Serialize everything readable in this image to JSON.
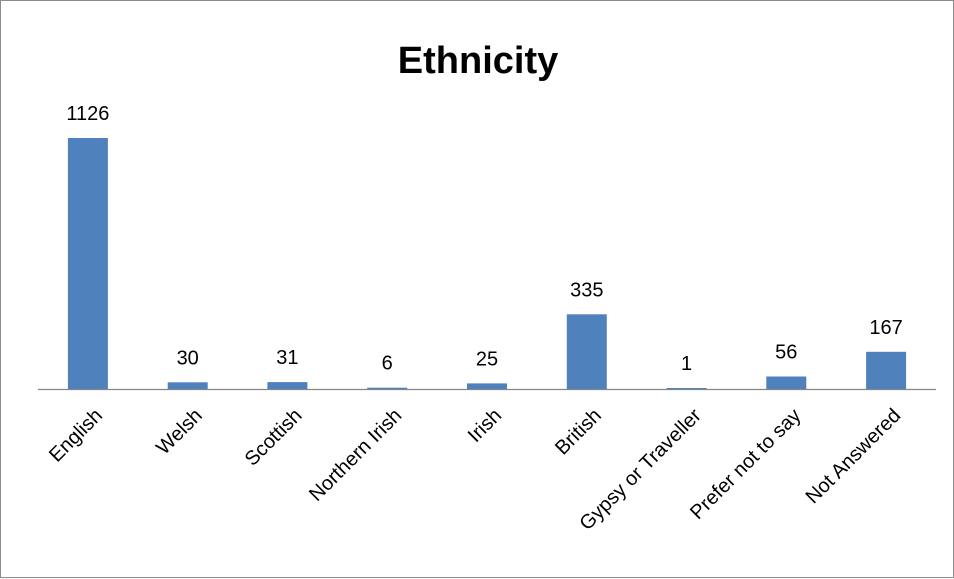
{
  "chart_data": {
    "type": "bar",
    "title": "Ethnicity",
    "categories": [
      "English",
      "Welsh",
      "Scottish",
      "Northern Irish",
      "Irish",
      "British",
      "Gypsy or Traveller",
      "Prefer not to say",
      "Not Answered"
    ],
    "values": [
      1126,
      30,
      31,
      6,
      25,
      335,
      1,
      56,
      167
    ],
    "xlabel": "",
    "ylabel": "",
    "ylim": [
      0,
      1126
    ],
    "grid": false,
    "legend": "none",
    "colors": {
      "bar": "#4f81bd",
      "axis": "#868686"
    }
  }
}
